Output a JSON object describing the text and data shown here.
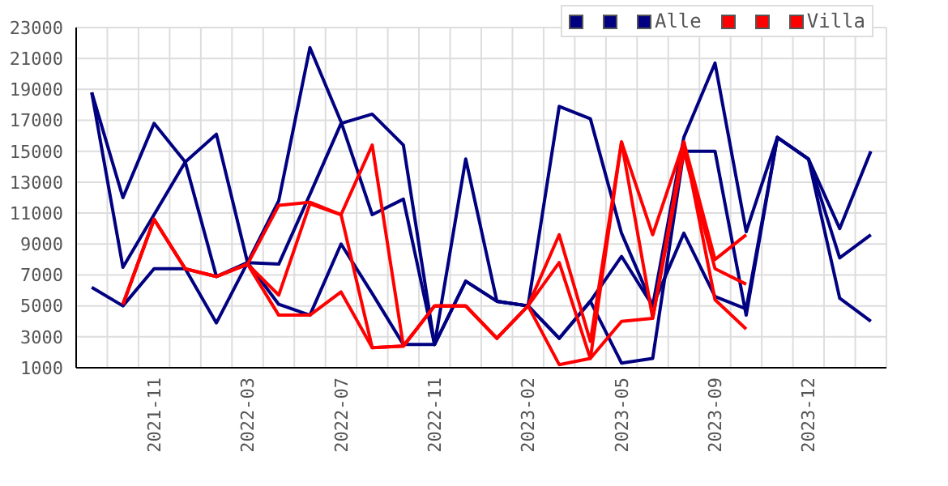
{
  "chart_data": {
    "type": "line",
    "categories": [
      null,
      null,
      "2021-11",
      null,
      null,
      "2022-03",
      null,
      null,
      "2022-07",
      null,
      null,
      "2022-11",
      null,
      null,
      "2023-02",
      null,
      null,
      "2023-05",
      null,
      null,
      "2023-09",
      null,
      null,
      "2023-12",
      null,
      null
    ],
    "series": [
      {
        "color": "#000080",
        "values": [
          18800,
          12000,
          16800,
          14300,
          6900,
          7800,
          11800,
          21700,
          16900,
          10900,
          11900,
          2500,
          14500,
          5300,
          5000,
          17900,
          17100,
          9700,
          5000,
          15900,
          20700,
          9800,
          15900,
          14500,
          10000,
          15000
        ]
      },
      {
        "color": "#000080",
        "values": [
          18800,
          7500,
          10900,
          14300,
          16100,
          7800,
          7700,
          12200,
          16800,
          17400,
          15400,
          2500,
          6600,
          5300,
          5000,
          2900,
          5300,
          1300,
          1600,
          15000,
          15000,
          4400,
          15900,
          14500,
          8100,
          9600
        ]
      },
      {
        "name": "Alle",
        "color": "#000080",
        "values": [
          6200,
          5000,
          7400,
          7400,
          3900,
          7800,
          5100,
          4400,
          9000,
          5800,
          2500,
          2500,
          6600,
          5300,
          5000,
          2900,
          5300,
          8200,
          5000,
          9700,
          5600,
          4800,
          15900,
          14500,
          5500,
          4000
        ]
      },
      {
        "color": "#ff0000",
        "values": [
          null,
          5100,
          10600,
          7400,
          6900,
          7700,
          11500,
          11700,
          10900,
          15400,
          2400,
          5000,
          5000,
          2900,
          5000,
          9600,
          2700,
          15600,
          9600,
          15600,
          8000,
          9600,
          null,
          null,
          null,
          null
        ]
      },
      {
        "color": "#ff0000",
        "values": [
          null,
          5100,
          10600,
          7400,
          6900,
          7700,
          5700,
          11600,
          10900,
          2300,
          2400,
          5000,
          5000,
          2900,
          5000,
          7800,
          1600,
          4000,
          4200,
          15000,
          7400,
          6400,
          null,
          null,
          null,
          null
        ]
      },
      {
        "name": "Villa",
        "color": "#ff0000",
        "values": [
          null,
          5100,
          10600,
          7400,
          6900,
          7700,
          4400,
          4400,
          5900,
          2300,
          2400,
          5000,
          5000,
          2900,
          5000,
          1200,
          1600,
          15600,
          4200,
          15600,
          5400,
          3500,
          null,
          null,
          null,
          null
        ]
      }
    ],
    "ylim": [
      1000,
      23000
    ],
    "yticks": [
      1000,
      3000,
      5000,
      7000,
      9000,
      11000,
      13000,
      15000,
      17000,
      19000,
      21000,
      23000
    ],
    "grid": true,
    "legend": "top right"
  }
}
